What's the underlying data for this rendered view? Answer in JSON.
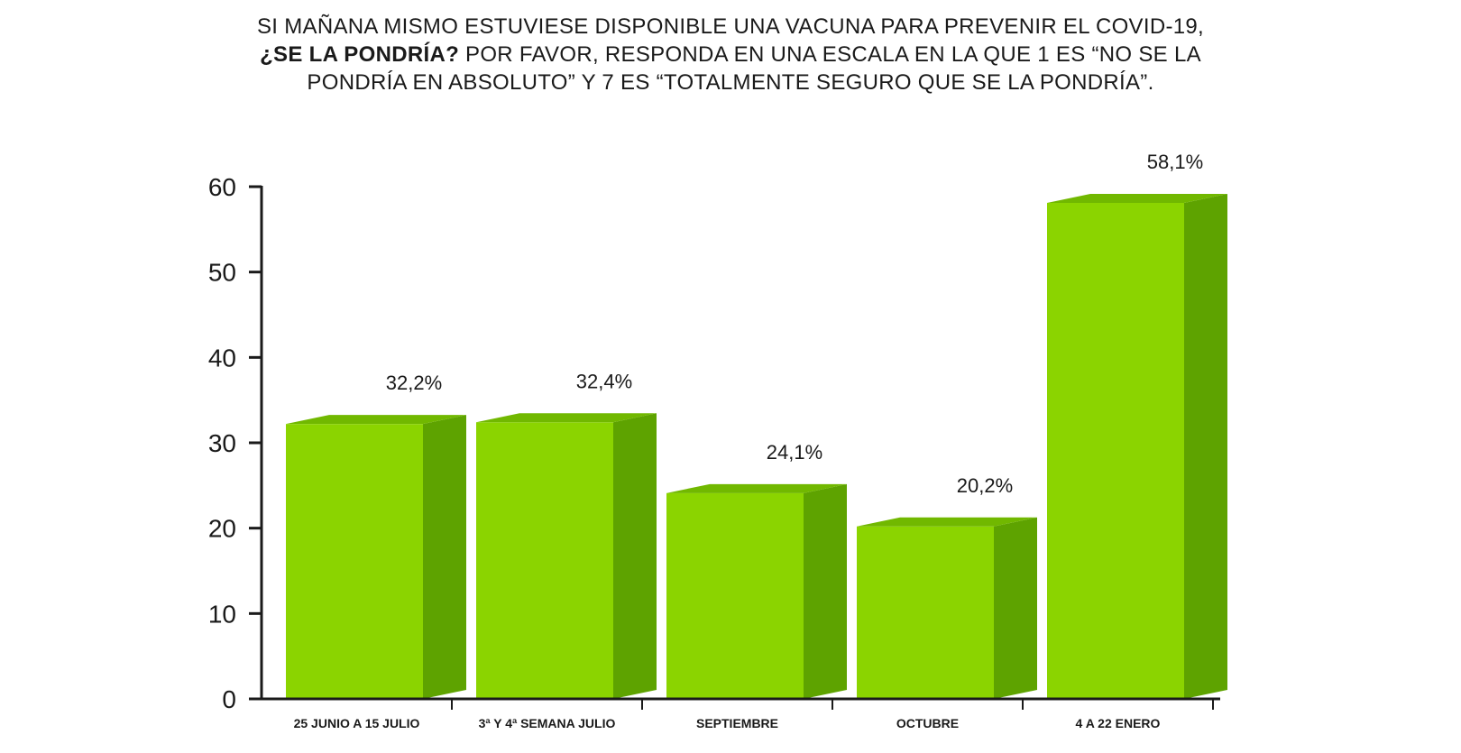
{
  "chart_data": {
    "type": "bar",
    "title_parts": [
      "SI MAÑANA MISMO ESTUVIESE DISPONIBLE UNA VACUNA PARA PREVENIR EL COVID-19, ",
      "¿SE LA PONDRÍA?",
      " POR FAVOR, RESPONDA EN UNA ESCALA EN LA QUE 1 ES “NO SE LA PONDRÍA EN ABSOLUTO” Y 7 ES “TOTALMENTE SEGURO QUE SE LA PONDRÍA”."
    ],
    "categories": [
      "25 JUNIO A 15 JULIO",
      "3ª Y 4ª SEMANA JULIO",
      "SEPTIEMBRE",
      "OCTUBRE",
      "4 A 22 ENERO"
    ],
    "values": [
      32.2,
      32.4,
      24.1,
      20.2,
      58.1
    ],
    "value_labels": [
      "32,2%",
      "32,4%",
      "24,1%",
      "20,2%",
      "58,1%"
    ],
    "yticks": [
      "0",
      "10",
      "20",
      "30",
      "40",
      "50",
      "60"
    ],
    "ylim": [
      0,
      60
    ],
    "xlabel": "",
    "ylabel": "",
    "grid": false,
    "colors": {
      "front": "#8bd400",
      "side": "#5ea300",
      "top": "#71b800",
      "axis": "#1a1a1a"
    }
  }
}
